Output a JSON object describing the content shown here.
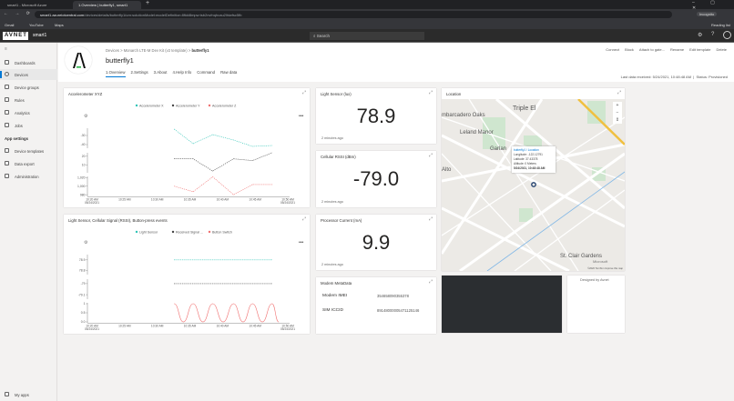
{
  "browser": {
    "tabs": [
      {
        "label": "smart1 - Microsoft Azure"
      },
      {
        "label": "1.Overview | butterfly1, smart1"
      }
    ],
    "url_host": "smart1.azureiotcentral.com",
    "url_path": "/devices/details/butterfly1/urn:solutionModel:modelDefinition:8fkkl8mpw:tsb2nvfnqhcau2lhiwfsc5fb",
    "incognito": "Incognito",
    "bookmarks": [
      "Gmail",
      "YouTube",
      "Maps"
    ],
    "reading_list": "Reading list"
  },
  "app": {
    "logo": "AVNET",
    "name": "smart1",
    "search_placeholder": "Search"
  },
  "sidebar": {
    "items": [
      {
        "label": "Dashboards"
      },
      {
        "label": "Devices"
      },
      {
        "label": "Device groups"
      },
      {
        "label": "Rules"
      },
      {
        "label": "Analytics"
      },
      {
        "label": "Jobs"
      }
    ],
    "section": "App settings",
    "settings_items": [
      {
        "label": "Device templates"
      },
      {
        "label": "Data export"
      },
      {
        "label": "Administration"
      }
    ],
    "my_apps": "My apps"
  },
  "device": {
    "breadcrumb": [
      "Devices",
      "Monarch LTE-M Dev Kit (v2 template)",
      "butterfly1"
    ],
    "name": "butterfly1",
    "tabs": [
      "1.Overview",
      "2.Settings",
      "3.About",
      "4.Help Info",
      "Command",
      "Raw data"
    ],
    "active_tab": "1.Overview",
    "actions": [
      "Connect",
      "Block",
      "Attach to gate...",
      "Rename",
      "Edit template",
      "Delete"
    ],
    "status_line": "Last data received: 5/24/2021, 10:48:48 AM  |  Status: Provisioned"
  },
  "tiles": {
    "light": {
      "title": "Light Sensor (lux)",
      "value": "78.9",
      "ago": "2 minutes ago"
    },
    "rssi": {
      "title": "Cellular RSSI (dBm)",
      "value": "-79.0",
      "ago": "2 minutes ago"
    },
    "current": {
      "title": "Processor Current (mA)",
      "value": "9.9",
      "ago": "2 minutes ago"
    },
    "modem": {
      "title": "Modem MetaData",
      "rows": [
        {
          "k": "Modem IMEI",
          "v": "354658090355378"
        },
        {
          "k": "SIM ICCID",
          "v": "89148000005471125146"
        }
      ]
    },
    "location": {
      "title": "Location",
      "popup_title": "butterfly1 / Location",
      "popup_lines": [
        "Longitude: -122.12791",
        "Latitude: 37.43378",
        "Altitude: 0 Meters"
      ],
      "popup_time": "5/24/2021, 10:48:48 AM",
      "labels": [
        "Triple El",
        "mbarcadero Oaks",
        "Leland Manor",
        "Garlan",
        "Alto",
        "St. Clair Gardens"
      ],
      "attribution": "©2020 TomTom  Improve this map",
      "brand": "Microsoft"
    },
    "designed": {
      "text": "Designed by Avnet"
    }
  },
  "chart_data": [
    {
      "type": "line",
      "title": "Accelerometer XYZ",
      "x_ticks": [
        "10:20 AM\n05/24/2021",
        "10:25 AM",
        "10:30 AM",
        "10:35 AM",
        "10:40 AM",
        "10:45 AM",
        "10:50 AM\n05/24/2021"
      ],
      "x_range": [
        "10:20",
        "10:50"
      ],
      "x": [
        "10:32:36",
        "10:35:30",
        "10:38:30",
        "10:41:42",
        "10:44:36",
        "10:47:36"
      ],
      "series": [
        {
          "name": "Accelerometer X",
          "color": "#2ec4b6",
          "values": [
            -23,
            -39,
            -29,
            -35,
            -42,
            -41
          ],
          "ylim": [
            -44,
            -22
          ],
          "ticks": [
            -30,
            -40
          ]
        },
        {
          "name": "Accelerometer Y",
          "color": "#444444",
          "values": [
            17,
            17,
            3,
            17,
            15,
            24
          ],
          "ylim": [
            1,
            24
          ],
          "ticks": [
            20,
            10
          ]
        },
        {
          "name": "Accelerometer Z",
          "color": "#f07070",
          "values": [
            1000,
            987,
            1022,
            980,
            1004,
            1004
          ],
          "ylim": [
            976,
            1023
          ],
          "ticks": [
            1020,
            1000,
            980
          ],
          "tick_labels": [
            "1,020",
            "1,000",
            "980"
          ]
        }
      ]
    },
    {
      "type": "line",
      "title": "Light Sensor, Cellular Signal (RSSI), Button-press events",
      "x_ticks": [
        "10:20 AM\n05/24/2021",
        "10:25 AM",
        "10:30 AM",
        "10:35 AM",
        "10:40 AM",
        "10:45 AM",
        "10:50 AM\n05/24/2021"
      ],
      "x_range": [
        "10:20",
        "10:50"
      ],
      "series": [
        {
          "name": "Light Sensor",
          "color": "#2ec4b6",
          "x": [
            "10:32:36",
            "10:47:36"
          ],
          "values": [
            78.9,
            78.9
          ],
          "ylim": [
            78.76,
            78.95
          ],
          "ticks": [
            78.9,
            78.8
          ],
          "tick_labels": [
            "78.9",
            "78.8"
          ]
        },
        {
          "name": "Received Signal ...",
          "color": "#444444",
          "x": [
            "10:32:36",
            "10:47:36"
          ],
          "values": [
            -79,
            -79
          ],
          "ylim": [
            -79.14,
            -78.96
          ],
          "ticks": [
            -79,
            -79.1
          ],
          "tick_labels": [
            "-79",
            "-79.1"
          ]
        },
        {
          "name": "Button Switch",
          "color": "#f07070",
          "x": [
            "10:32:36",
            "10:34:00",
            "10:35:30",
            "10:37:00",
            "10:38:30",
            "10:40:06",
            "10:41:42",
            "10:43:09",
            "10:44:36",
            "10:46:06",
            "10:47:36",
            "10:48:36"
          ],
          "values": [
            1,
            0,
            1,
            0,
            1,
            0,
            1,
            0,
            1,
            0,
            1,
            0
          ],
          "ylim": [
            -0.05,
            1.05
          ],
          "ticks": [
            1,
            0.5,
            0
          ],
          "tick_labels": [
            "1",
            "0.5",
            "0.0"
          ],
          "smooth": true
        }
      ]
    }
  ]
}
